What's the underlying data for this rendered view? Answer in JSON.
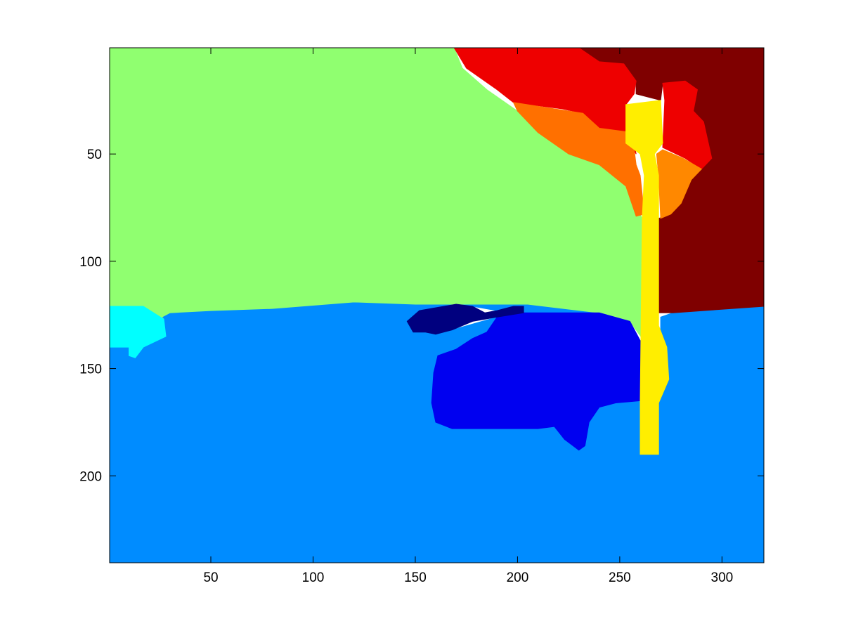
{
  "chart_data": {
    "type": "heatmap",
    "title": "",
    "xlabel": "",
    "ylabel": "",
    "xlim": [
      0.5,
      320.5
    ],
    "ylim": [
      0.5,
      240.5
    ],
    "y_reversed": true,
    "grid": false,
    "colormap": "jet",
    "x_ticks": [
      50,
      100,
      150,
      200,
      250,
      300
    ],
    "y_ticks": [
      50,
      100,
      150,
      200
    ],
    "x_tick_labels": [
      "50",
      "100",
      "150",
      "200",
      "250",
      "300"
    ],
    "y_tick_labels": [
      "50",
      "100",
      "150",
      "200"
    ],
    "regions": [
      {
        "label": 1,
        "color": "#00007f",
        "polygon": [
          [
            146,
            128
          ],
          [
            152,
            123
          ],
          [
            170,
            120
          ],
          [
            178,
            121
          ],
          [
            184,
            124
          ],
          [
            190,
            123
          ],
          [
            198,
            121
          ],
          [
            203,
            121
          ],
          [
            203,
            124
          ],
          [
            190,
            126
          ],
          [
            178,
            128
          ],
          [
            168,
            132
          ],
          [
            160,
            134
          ],
          [
            155,
            133
          ],
          [
            149,
            133
          ]
        ]
      },
      {
        "label": 2,
        "color": "#0000f0",
        "polygon": [
          [
            190,
            126
          ],
          [
            200,
            124
          ],
          [
            240,
            124
          ],
          [
            255,
            128
          ],
          [
            260,
            137
          ],
          [
            260,
            165
          ],
          [
            248,
            166
          ],
          [
            240,
            168
          ],
          [
            235,
            175
          ],
          [
            233,
            186
          ],
          [
            230,
            188
          ],
          [
            223,
            183
          ],
          [
            218,
            177
          ],
          [
            210,
            178
          ],
          [
            197,
            178
          ],
          [
            178,
            178
          ],
          [
            172,
            178
          ],
          [
            168,
            178
          ],
          [
            160,
            175
          ],
          [
            158,
            166
          ],
          [
            159,
            152
          ],
          [
            161,
            144
          ],
          [
            170,
            141
          ],
          [
            178,
            136
          ],
          [
            185,
            133
          ]
        ]
      },
      {
        "label": 3,
        "color": "#008cff",
        "polygon": [
          [
            0.5,
            240.5
          ],
          [
            0.5,
            140
          ],
          [
            13,
            140
          ],
          [
            28,
            135
          ],
          [
            26,
            126
          ],
          [
            30,
            124
          ],
          [
            50,
            123
          ],
          [
            80,
            122
          ],
          [
            120,
            119
          ],
          [
            150,
            120
          ],
          [
            205,
            120
          ],
          [
            240,
            124
          ],
          [
            260,
            137
          ],
          [
            260,
            165
          ],
          [
            248,
            166
          ],
          [
            240,
            168
          ],
          [
            235,
            175
          ],
          [
            233,
            186
          ],
          [
            230,
            188
          ],
          [
            223,
            183
          ],
          [
            218,
            177
          ],
          [
            197,
            178
          ],
          [
            160,
            175
          ],
          [
            158,
            166
          ],
          [
            159,
            152
          ],
          [
            161,
            144
          ],
          [
            170,
            141
          ],
          [
            178,
            136
          ],
          [
            190,
            126
          ],
          [
            203,
            124
          ],
          [
            190,
            123
          ],
          [
            178,
            121
          ],
          [
            170,
            120
          ],
          [
            152,
            123
          ],
          [
            146,
            128
          ],
          [
            149,
            133
          ],
          [
            155,
            133
          ],
          [
            160,
            134
          ],
          [
            168,
            132
          ],
          [
            190,
            126
          ],
          [
            178,
            136
          ],
          [
            170,
            141
          ],
          [
            161,
            144
          ],
          [
            159,
            152
          ],
          [
            158,
            166
          ],
          [
            160,
            175
          ],
          [
            172,
            178
          ],
          [
            210,
            178
          ],
          [
            218,
            177
          ],
          [
            223,
            183
          ],
          [
            230,
            188
          ],
          [
            233,
            186
          ],
          [
            235,
            175
          ],
          [
            240,
            168
          ],
          [
            248,
            166
          ],
          [
            260,
            165
          ],
          [
            260,
            190
          ],
          [
            269,
            190
          ],
          [
            269,
            166
          ],
          [
            273,
            155
          ],
          [
            271,
            148
          ],
          [
            270,
            140
          ],
          [
            270,
            126
          ],
          [
            276,
            124
          ],
          [
            320.5,
            121
          ],
          [
            320.5,
            240.5
          ]
        ]
      },
      {
        "label": 4,
        "color": "#00ffff",
        "polygon": [
          [
            0.5,
            121
          ],
          [
            17,
            121
          ],
          [
            27,
            127
          ],
          [
            28,
            135
          ],
          [
            17,
            140
          ],
          [
            13,
            145
          ],
          [
            10,
            144
          ],
          [
            10,
            140
          ],
          [
            0.5,
            140
          ]
        ]
      },
      {
        "label": 5,
        "color": "#90ff70",
        "polygon": [
          [
            0.5,
            0.5
          ],
          [
            169,
            0.5
          ],
          [
            173,
            10
          ],
          [
            185,
            20
          ],
          [
            200,
            30
          ],
          [
            210,
            40
          ],
          [
            225,
            50
          ],
          [
            240,
            55
          ],
          [
            255,
            65
          ],
          [
            258,
            75
          ],
          [
            261,
            80
          ],
          [
            261,
            136
          ],
          [
            255,
            128
          ],
          [
            240,
            124
          ],
          [
            205,
            120
          ],
          [
            150,
            120
          ],
          [
            120,
            119
          ],
          [
            80,
            122
          ],
          [
            50,
            123
          ],
          [
            30,
            124
          ],
          [
            26,
            126
          ],
          [
            27,
            127
          ],
          [
            17,
            121
          ],
          [
            0.5,
            121
          ]
        ]
      },
      {
        "label": 6,
        "color": "#ffee00",
        "polygon": [
          [
            253,
            27
          ],
          [
            270,
            25
          ],
          [
            271,
            45
          ],
          [
            267,
            50
          ],
          [
            269,
            60
          ],
          [
            269,
            80
          ],
          [
            269,
            130
          ],
          [
            273,
            140
          ],
          [
            274,
            155
          ],
          [
            269,
            166
          ],
          [
            269,
            190
          ],
          [
            260,
            190
          ],
          [
            260,
            165
          ],
          [
            261,
            80
          ],
          [
            262,
            60
          ],
          [
            260,
            50
          ],
          [
            253,
            45
          ]
        ]
      },
      {
        "label": 7,
        "color": "#ff7000",
        "polygon": [
          [
            198,
            26
          ],
          [
            232,
            31
          ],
          [
            240,
            38
          ],
          [
            256,
            40
          ],
          [
            258,
            55
          ],
          [
            260,
            60
          ],
          [
            262,
            78
          ],
          [
            258,
            79
          ],
          [
            253,
            65
          ],
          [
            240,
            55
          ],
          [
            225,
            50
          ],
          [
            210,
            40
          ],
          [
            200,
            30
          ]
        ]
      },
      {
        "label": 8,
        "color": "#ff8800",
        "polygon": [
          [
            271,
            48
          ],
          [
            281,
            52
          ],
          [
            290,
            57
          ],
          [
            285,
            62
          ],
          [
            280,
            73
          ],
          [
            275,
            78
          ],
          [
            270,
            80
          ],
          [
            269,
            60
          ],
          [
            268,
            50
          ]
        ]
      },
      {
        "label": 9,
        "color": "#ee0000",
        "polygon": [
          [
            169,
            0.5
          ],
          [
            230,
            0.5
          ],
          [
            240,
            7
          ],
          [
            252,
            8
          ],
          [
            258,
            16
          ],
          [
            257,
            22
          ],
          [
            253,
            27
          ],
          [
            255,
            45
          ],
          [
            258,
            50
          ],
          [
            256,
            40
          ],
          [
            240,
            38
          ],
          [
            232,
            31
          ],
          [
            222,
            29
          ],
          [
            198,
            26
          ],
          [
            190,
            20
          ],
          [
            175,
            10
          ]
        ]
      },
      {
        "label": 10,
        "color": "#ee0000",
        "polygon": [
          [
            271,
            17
          ],
          [
            282,
            16
          ],
          [
            288,
            20
          ],
          [
            286,
            30
          ],
          [
            291,
            35
          ],
          [
            295,
            52
          ],
          [
            290,
            57
          ],
          [
            282,
            52
          ],
          [
            271,
            47
          ],
          [
            272,
            25
          ]
        ]
      },
      {
        "label": 11,
        "color": "#7f0000",
        "polygon": [
          [
            230,
            0.5
          ],
          [
            320.5,
            0.5
          ],
          [
            320.5,
            121
          ],
          [
            276,
            124
          ],
          [
            269,
            124
          ],
          [
            269,
            80
          ],
          [
            275,
            78
          ],
          [
            280,
            73
          ],
          [
            285,
            62
          ],
          [
            290,
            57
          ],
          [
            295,
            52
          ],
          [
            291,
            35
          ],
          [
            286,
            30
          ],
          [
            288,
            20
          ],
          [
            282,
            16
          ],
          [
            271,
            17
          ],
          [
            270,
            25
          ],
          [
            258,
            22
          ],
          [
            258,
            16
          ],
          [
            252,
            8
          ],
          [
            240,
            7
          ]
        ]
      }
    ]
  }
}
